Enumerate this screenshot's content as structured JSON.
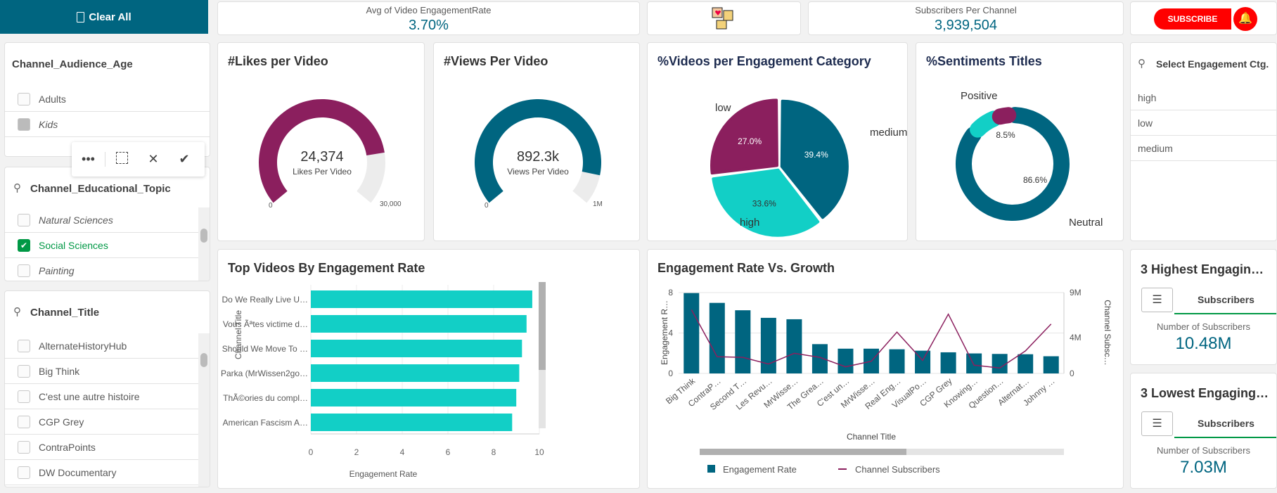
{
  "toolbar": {
    "clear_all": "Clear All"
  },
  "kpis": {
    "avg_engagement_label": "Avg of Video EngagementRate",
    "avg_engagement_value": "3.70%",
    "subs_label": "Subscribers Per Channel",
    "subs_value": "3,939,504",
    "subscribe_label": "SUBSCRIBE"
  },
  "filters": {
    "audience": {
      "title": "Channel_Audience_Age",
      "items": [
        {
          "label": "Adults",
          "state": "none"
        },
        {
          "label": "Kids",
          "state": "excluded"
        }
      ]
    },
    "selection_toolbar": {
      "icons": [
        "more-icon",
        "clear-selection-icon",
        "cancel-icon",
        "confirm-icon"
      ]
    },
    "topic": {
      "title": "Channel_Educational_Topic",
      "items": [
        {
          "label": "Natural Sciences",
          "state": "excluded"
        },
        {
          "label": "Social Sciences",
          "state": "selected"
        },
        {
          "label": "Painting",
          "state": "excluded"
        }
      ]
    },
    "channel": {
      "title": "Channel_Title",
      "items": [
        "AlternateHistoryHub",
        "Big Think",
        "C'est une autre histoire",
        "CGP Grey",
        "ContraPoints",
        "DW Documentary"
      ]
    }
  },
  "select_engagement": {
    "title": "Select Engagement Ctg.",
    "items": [
      "high",
      "low",
      "medium"
    ]
  },
  "side_kpis": [
    {
      "title": "3 Highest Engagin…",
      "tab": "Subscribers",
      "label": "Number of Subscribers",
      "value": "10.48M"
    },
    {
      "title": "3 Lowest Engaging…",
      "tab": "Subscribers",
      "label": "Number of Subscribers",
      "value": "7.03M"
    }
  ],
  "colors": {
    "teal": "#006580",
    "magenta": "#8b1f5e",
    "cyan": "#12cfc6",
    "selected_green": "#009845"
  },
  "chart_data": [
    {
      "type": "gauge",
      "title": "#Likes per Video",
      "value": 24374,
      "value_label": "24,374",
      "measure_label": "Likes Per Video",
      "min_label": "0",
      "max_label": "30,000",
      "min": 0,
      "max": 30000,
      "color": "#8b1f5e"
    },
    {
      "type": "gauge",
      "title": "#Views Per Video",
      "value": 892300,
      "value_label": "892.3k",
      "measure_label": "Views Per Video",
      "min_label": "0",
      "max_label": "1M",
      "min": 0,
      "max": 1000000,
      "color": "#006580"
    },
    {
      "type": "pie",
      "title": "%Videos per Engagement Category",
      "slices": [
        {
          "label": "medium",
          "value": 39.4,
          "value_label": "39.4%",
          "color": "#006580"
        },
        {
          "label": "high",
          "value": 33.6,
          "value_label": "33.6%",
          "color": "#12cfc6"
        },
        {
          "label": "low",
          "value": 27.0,
          "value_label": "27.0%",
          "color": "#8b1f5e"
        }
      ]
    },
    {
      "type": "pie",
      "title": "%Sentiments Titles",
      "donut": true,
      "slices": [
        {
          "label": "Neutral",
          "value": 86.6,
          "value_label": "86.6%",
          "color": "#006580"
        },
        {
          "label": "Positive",
          "value": 8.5,
          "value_label": "8.5%",
          "color": "#12cfc6"
        },
        {
          "label": "",
          "value": 4.9,
          "value_label": "",
          "color": "#8b1f5e"
        }
      ]
    },
    {
      "type": "bar",
      "orientation": "horizontal",
      "title": "Top Videos By Engagement Rate",
      "xlabel": "Engagement Rate",
      "ylabel": "Channel Title",
      "xlim": [
        0,
        10
      ],
      "xticks": [
        "0",
        "2",
        "4",
        "6",
        "8",
        "10"
      ],
      "categories": [
        "Do We Really Live U…",
        "Vous Ãªtes victime d…",
        "Should We Move To …",
        "Parka (MrWissen2go…",
        "ThÃ©ories du compl…",
        "American Fascism A…"
      ],
      "values": [
        9.69,
        9.44,
        9.24,
        9.12,
        8.99,
        8.81
      ],
      "color": "#12cfc6"
    },
    {
      "type": "bar+line",
      "title": "Engagement Rate Vs. Growth",
      "xlabel": "Channel Title",
      "ylabel": "Engagement R…",
      "y2label": "Channel Subsc…",
      "ylim": [
        0,
        8
      ],
      "yticks": [
        "0",
        "4",
        "8"
      ],
      "y2lim": [
        0,
        9000000
      ],
      "y2ticks": [
        "0",
        "4M",
        "9M"
      ],
      "categories": [
        "Big Think",
        "ContraP…",
        "Second T…",
        "Les Revu…",
        "MrWisse…",
        "The Grea…",
        "C'est un…",
        "MrWisse…",
        "Real Eng…",
        "VisualPo…",
        "CGP Grey",
        "Knowing…",
        "Question…",
        "Alternat…",
        "Johnny …"
      ],
      "series": [
        {
          "name": "Engagement Rate",
          "type": "bar",
          "color": "#006580",
          "values": [
            7.95,
            6.98,
            6.25,
            5.5,
            5.36,
            2.9,
            2.45,
            2.45,
            2.39,
            2.25,
            2.09,
            1.98,
            1.93,
            1.9,
            1.7
          ]
        },
        {
          "name": "Channel Subscribers",
          "type": "line",
          "color": "#8b1f5e",
          "values": [
            7100000,
            1860000,
            1790000,
            1050000,
            2240000,
            1790000,
            740000,
            1350000,
            4600000,
            1450000,
            6600000,
            920000,
            610000,
            2500000,
            5500000
          ]
        }
      ],
      "legend": "bottom"
    }
  ]
}
